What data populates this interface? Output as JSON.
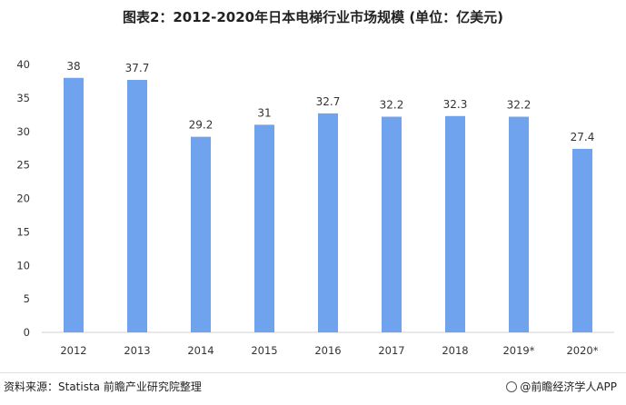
{
  "header": {
    "title": "图表2：2012-2020年日本电梯行业市场规模 (单位：亿美元)"
  },
  "footer": {
    "source": "资料来源：Statista 前瞻产业研究院整理",
    "brand": "@前瞻经济学人APP"
  },
  "colors": {
    "bar": "#6fa3ee",
    "axis": "#d0d0d0"
  },
  "chart_data": {
    "type": "bar",
    "title": "图表2：2012-2020年日本电梯行业市场规模 (单位：亿美元)",
    "categories": [
      "2012",
      "2013",
      "2014",
      "2015",
      "2016",
      "2017",
      "2018",
      "2019*",
      "2020*"
    ],
    "values": [
      38,
      37.7,
      29.2,
      31,
      32.7,
      32.2,
      32.3,
      32.2,
      27.4
    ],
    "data_labels": [
      "38",
      "37.7",
      "29.2",
      "31",
      "32.7",
      "32.2",
      "32.3",
      "32.2",
      "27.4"
    ],
    "xlabel": "",
    "ylabel": "",
    "ylim": [
      0,
      40
    ],
    "yticks": [
      0,
      5,
      10,
      15,
      20,
      25,
      30,
      35,
      40
    ],
    "grid": false,
    "legend": "none"
  }
}
